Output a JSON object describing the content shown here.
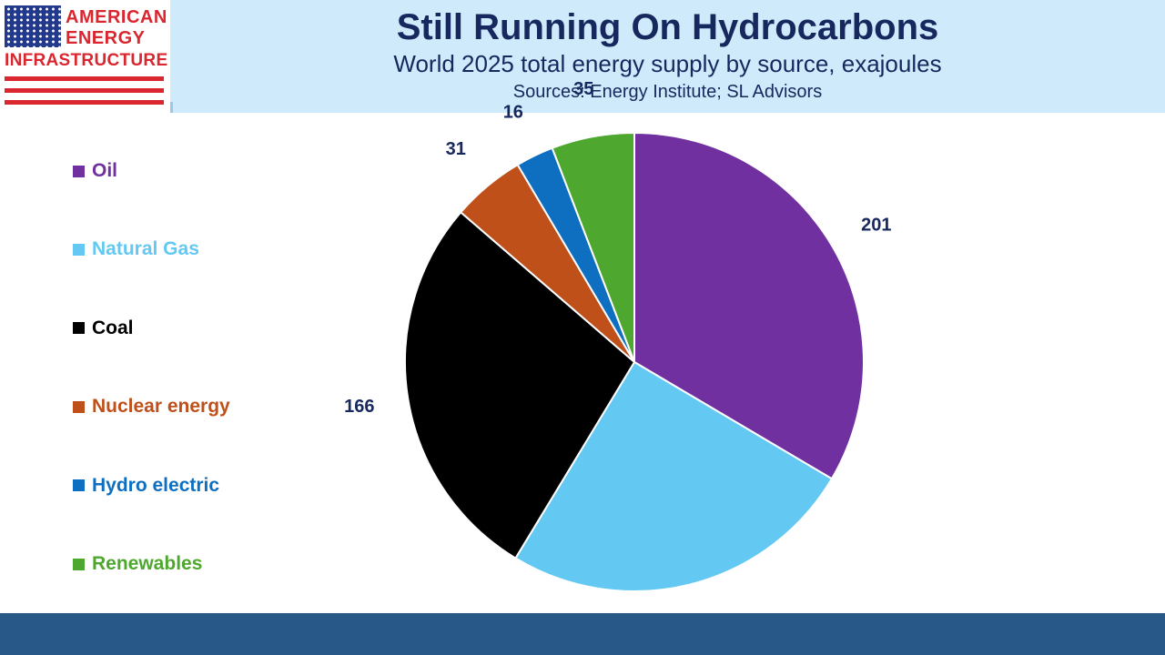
{
  "header": {
    "title": "Still Running On Hydrocarbons",
    "subtitle": "World 2025 total energy supply by source, exajoules",
    "source": "Sources: Energy Institute; SL Advisors"
  },
  "logo": {
    "line1": "AMERICAN",
    "line2": "ENERGY",
    "line3": "INFRASTRUCTURE",
    "colors": {
      "red": "#d9262f",
      "blue": "#233a8c"
    }
  },
  "chart_data": {
    "type": "pie",
    "title": "Still Running On Hydrocarbons",
    "subtitle": "World 2025 total energy supply by source, exajoules",
    "legend_position": "left",
    "start_angle_deg": 0,
    "direction": "clockwise",
    "slices": [
      {
        "name": "Oil",
        "value": 201,
        "color": "#7030a0"
      },
      {
        "name": "Natural Gas",
        "value": 151,
        "color": "#63c9f2"
      },
      {
        "name": "Coal",
        "value": 166,
        "color": "#000000"
      },
      {
        "name": "Nuclear energy",
        "value": 31,
        "color": "#c0501a"
      },
      {
        "name": "Hydro electric",
        "value": 16,
        "color": "#0e6fc1"
      },
      {
        "name": "Renewables",
        "value": 35,
        "color": "#4ea72e"
      }
    ]
  },
  "colors": {
    "header_bg": "#cfeafb",
    "title_text": "#17285e",
    "footer_bar": "#285887"
  }
}
